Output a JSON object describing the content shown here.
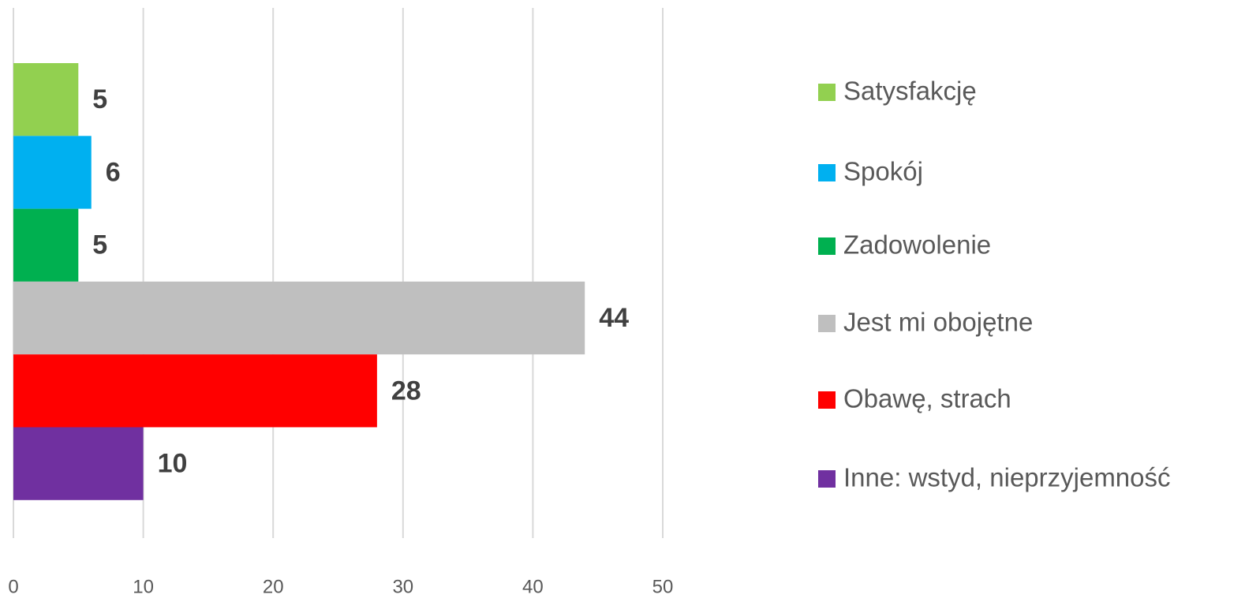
{
  "chart_data": {
    "type": "bar",
    "orientation": "horizontal",
    "series": [
      {
        "name": "Satysfakcję",
        "color": "#92d050",
        "values": [
          5
        ]
      },
      {
        "name": "Spokój",
        "color": "#00b0f0",
        "values": [
          6
        ]
      },
      {
        "name": "Zadowolenie",
        "color": "#00b050",
        "values": [
          5
        ]
      },
      {
        "name": "Jest mi obojętne",
        "color": "#bfbfbf",
        "values": [
          44
        ]
      },
      {
        "name": "Obawę, strach",
        "color": "#ff0000",
        "values": [
          28
        ]
      },
      {
        "name": "Inne: wstyd, nieprzyjemność",
        "color": "#7030a0",
        "values": [
          10
        ]
      }
    ],
    "xlim": [
      0,
      50
    ],
    "xticks": [
      0,
      10,
      20,
      30,
      40,
      50
    ],
    "grid": true,
    "legend": "right"
  }
}
